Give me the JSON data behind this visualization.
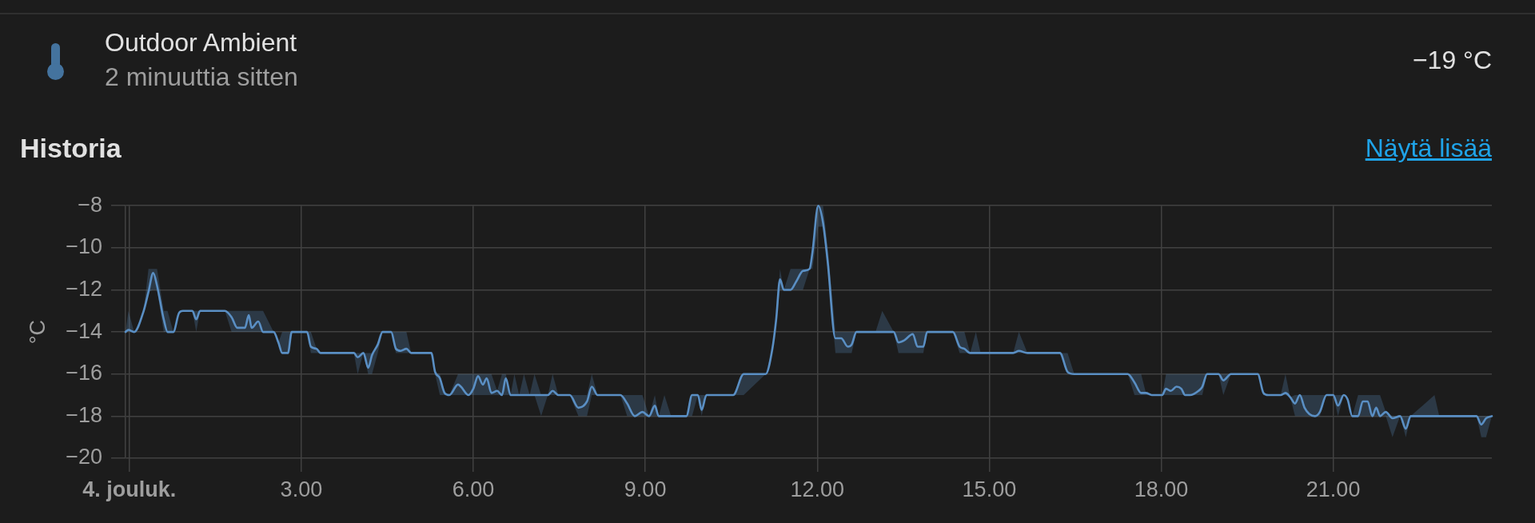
{
  "chart_data": {
    "type": "line",
    "title": "Outdoor Ambient",
    "subtitle": "2 minuuttia sitten",
    "annotations": [
      "−19 °C",
      "Historia",
      "Näytä lisää"
    ],
    "ylabel": "°C",
    "x": [
      "--12-03T23:56",
      "--12-03T23:59",
      "--12-04T00:05",
      "--12-04T00:15",
      "--12-04T00:20",
      "--12-04T00:25",
      "--12-04T00:29",
      "--12-04T00:36",
      "--12-04T00:40",
      "--12-04T00:46",
      "--12-04T00:52",
      "--12-04T00:56",
      "--12-04T01:06",
      "--12-04T01:10",
      "--12-04T01:14",
      "--12-04T01:40",
      "--12-04T01:47",
      "--12-04T01:53",
      "--12-04T02:01",
      "--12-04T02:05",
      "--12-04T02:08",
      "--12-04T02:15",
      "--12-04T02:20",
      "--12-04T02:31",
      "--12-04T02:36",
      "--12-04T02:40",
      "--12-04T02:46",
      "--12-04T02:50",
      "--12-04T03:06",
      "--12-04T03:10",
      "--12-04T03:16",
      "--12-04T03:20",
      "--12-04T03:55",
      "--12-04T03:59",
      "--12-04T04:05",
      "--12-04T04:10",
      "--12-04T04:14",
      "--12-04T04:20",
      "--12-04T04:25",
      "--12-04T04:34",
      "--12-04T04:39",
      "--12-04T04:44",
      "--12-04T04:50",
      "--12-04T04:55",
      "--12-04T05:16",
      "--12-04T05:20",
      "--12-04T05:25",
      "--12-04T05:30",
      "--12-04T05:35",
      "--12-04T05:44",
      "--12-04T05:47",
      "--12-04T05:55",
      "--12-04T06:00",
      "--12-04T06:05",
      "--12-04T06:10",
      "--12-04T06:14",
      "--12-04T06:19",
      "--12-04T06:25",
      "--12-04T06:30",
      "--12-04T06:34",
      "--12-04T06:39",
      "--12-04T06:43",
      "--12-04T06:48",
      "--12-04T06:53",
      "--12-04T06:59",
      "--12-04T07:04",
      "--12-04T07:11",
      "--12-04T07:18",
      "--12-04T07:23",
      "--12-04T07:29",
      "--12-04T07:41",
      "--12-04T07:50",
      "--12-04T07:59",
      "--12-04T08:04",
      "--12-04T08:10",
      "--12-04T08:34",
      "--12-04T08:41",
      "--12-04T08:49",
      "--12-04T08:57",
      "--12-04T09:04",
      "--12-04T09:10",
      "--12-04T09:14",
      "--12-04T09:20",
      "--12-04T09:27",
      "--12-04T09:43",
      "--12-04T09:49",
      "--12-04T09:55",
      "--12-04T09:59",
      "--12-04T10:04",
      "--12-04T10:32",
      "--12-04T10:43",
      "--12-04T11:06",
      "--12-04T11:13",
      "--12-04T11:17",
      "--12-04T11:21",
      "--12-04T11:25",
      "--12-04T11:32",
      "--12-04T11:38",
      "--12-04T11:45",
      "--12-04T11:52",
      "--12-04T11:55",
      "--12-04T12:01",
      "--12-04T12:06",
      "--12-04T12:11",
      "--12-04T12:19",
      "--12-04T12:25",
      "--12-04T12:32",
      "--12-04T12:36",
      "--12-04T12:41",
      "--12-04T13:01",
      "--12-04T13:08",
      "--12-04T13:20",
      "--12-04T13:25",
      "--12-04T13:31",
      "--12-04T13:40",
      "--12-04T13:45",
      "--12-04T13:51",
      "--12-04T13:55",
      "--12-04T14:22",
      "--12-04T14:29",
      "--12-04T14:34",
      "--12-04T14:40",
      "--12-04T14:46",
      "--12-04T14:51",
      "--12-04T15:25",
      "--12-04T15:31",
      "--12-04T15:40",
      "--12-04T16:14",
      "--12-04T16:22",
      "--12-04T16:29",
      "--12-04T17:25",
      "--12-04T17:32",
      "--12-04T17:39",
      "--12-04T17:44",
      "--12-04T17:50",
      "--12-04T18:01",
      "--12-04T18:05",
      "--12-04T18:10",
      "--12-04T18:16",
      "--12-04T18:21",
      "--12-04T18:25",
      "--12-04T18:30",
      "--12-04T18:39",
      "--12-04T18:43",
      "--12-04T18:48",
      "--12-04T19:00",
      "--12-04T19:05",
      "--12-04T19:13",
      "--12-04T19:41",
      "--12-04T19:47",
      "--12-04T19:52",
      "--12-04T20:05",
      "--12-04T20:10",
      "--12-04T20:15",
      "--12-04T20:20",
      "--12-04T20:25",
      "--12-04T20:30",
      "--12-04T20:35",
      "--12-04T20:41",
      "--12-04T20:46",
      "--12-04T20:53",
      "--12-04T21:00",
      "--12-04T21:05",
      "--12-04T21:11",
      "--12-04T21:15",
      "--12-04T21:20",
      "--12-04T21:26",
      "--12-04T21:31",
      "--12-04T21:36",
      "--12-04T21:41",
      "--12-04T21:45",
      "--12-04T21:49",
      "--12-04T21:55",
      "--12-04T22:02",
      "--12-04T22:10",
      "--12-04T22:16",
      "--12-04T22:21",
      "--12-04T22:46",
      "--12-04T22:51",
      "--12-04T23:30",
      "--12-04T23:35",
      "--12-04T23:40",
      "--12-04T23:46"
    ],
    "series": [
      {
        "color": "#5a8fc4",
        "values": [
          -14,
          -13.9,
          -14,
          -13,
          -12.1,
          -11.2,
          -11.8,
          -13.4,
          -14,
          -14,
          -13.1,
          -13,
          -13,
          -13.4,
          -13,
          -13,
          -13.3,
          -13.8,
          -13.8,
          -13.2,
          -13.8,
          -13.5,
          -14,
          -14,
          -14.5,
          -15,
          -15,
          -14,
          -14,
          -14.7,
          -14.8,
          -15,
          -15,
          -15.2,
          -15,
          -15.7,
          -15.1,
          -14.6,
          -14,
          -14,
          -14.8,
          -14.9,
          -14.8,
          -15,
          -15,
          -15.9,
          -16.2,
          -16.9,
          -17,
          -16.5,
          -16.6,
          -17,
          -16.7,
          -16.1,
          -16.5,
          -16.2,
          -16.9,
          -16.8,
          -17,
          -16.2,
          -17,
          -17,
          -17,
          -17,
          -17,
          -17,
          -17,
          -17,
          -16.8,
          -17,
          -17,
          -17.6,
          -17.3,
          -16.6,
          -17,
          -17,
          -17.4,
          -18,
          -17.8,
          -18,
          -17.5,
          -18,
          -18,
          -18,
          -18,
          -17,
          -17,
          -17.7,
          -17,
          -17,
          -16,
          -16,
          -14.8,
          -13.4,
          -11.5,
          -12,
          -12,
          -11.6,
          -11.1,
          -11,
          -10.2,
          -8,
          -8.8,
          -10.7,
          -14.3,
          -14.3,
          -14.7,
          -14.6,
          -14,
          -14,
          -14,
          -14,
          -14.5,
          -14.4,
          -14.1,
          -14.7,
          -14.7,
          -14,
          -14,
          -14.7,
          -14.8,
          -15,
          -15,
          -15,
          -15,
          -14.9,
          -15,
          -15,
          -15.9,
          -16,
          -16,
          -16.4,
          -16.9,
          -16.9,
          -17,
          -17,
          -16.7,
          -16.8,
          -16.6,
          -16.7,
          -17,
          -17,
          -16.8,
          -16.6,
          -16,
          -16,
          -16.3,
          -16,
          -16,
          -16.9,
          -17,
          -17,
          -16.9,
          -17.1,
          -17.4,
          -17,
          -17.6,
          -17.9,
          -18,
          -17.8,
          -17,
          -17,
          -17.5,
          -17,
          -17.2,
          -18,
          -18,
          -17.3,
          -17.3,
          -18,
          -17.6,
          -18,
          -17.8,
          -18.1,
          -18,
          -18.6,
          -18,
          -18,
          -18,
          -18,
          -18.4,
          -18.1,
          -18
        ],
        "lower": [
          -14,
          -14,
          -14,
          -13,
          -12.1,
          -12,
          -12,
          -14,
          -14,
          -14,
          -13.1,
          -13,
          -13,
          -14,
          -13,
          -13,
          -14,
          -14,
          -14,
          -14,
          -14,
          -14,
          -14,
          -14,
          -14.5,
          -15,
          -15,
          -14,
          -14,
          -15,
          -15,
          -15,
          -15,
          -16,
          -15,
          -16,
          -16,
          -15,
          -14,
          -14,
          -15,
          -15,
          -15,
          -15,
          -15,
          -16,
          -17,
          -17,
          -17,
          -17,
          -17,
          -17,
          -17,
          -17,
          -17,
          -17,
          -17,
          -17,
          -17,
          -17,
          -17,
          -17,
          -17,
          -17,
          -17,
          -17,
          -18,
          -17,
          -17,
          -17,
          -17,
          -18,
          -18,
          -17,
          -17,
          -17,
          -18,
          -18,
          -18,
          -18,
          -18,
          -18,
          -18,
          -18,
          -18,
          -18,
          -17,
          -18,
          -17,
          -17,
          -17,
          -16,
          -15,
          -13.4,
          -12,
          -12,
          -12,
          -12,
          -12,
          -11,
          -11,
          -9,
          -9,
          -11,
          -15,
          -15,
          -15,
          -15,
          -14,
          -14,
          -14,
          -14,
          -15,
          -15,
          -15,
          -15,
          -15,
          -14,
          -14,
          -15,
          -15,
          -15,
          -15,
          -15,
          -15,
          -15,
          -15,
          -15,
          -16,
          -16,
          -16,
          -17,
          -17,
          -17,
          -17,
          -17,
          -17,
          -17,
          -17,
          -17,
          -17,
          -17,
          -17,
          -17,
          -16,
          -16,
          -17,
          -16,
          -16,
          -17,
          -17,
          -17,
          -17,
          -17.1,
          -18,
          -18,
          -18,
          -18,
          -18,
          -18,
          -17,
          -17,
          -18,
          -17,
          -17.2,
          -18,
          -18,
          -18,
          -18,
          -18,
          -18,
          -18,
          -18,
          -19,
          -18,
          -19,
          -18,
          -18,
          -18,
          -18,
          -19,
          -19,
          -18
        ],
        "upper": [
          -14,
          -13,
          -14,
          -13,
          -11,
          -11,
          -11,
          -13,
          -13,
          -14,
          -13.1,
          -13,
          -13,
          -13,
          -13,
          -13,
          -13,
          -13,
          -13,
          -13,
          -13,
          -13,
          -13,
          -14,
          -14.5,
          -14,
          -14,
          -14,
          -14,
          -14,
          -14.8,
          -15,
          -15,
          -15,
          -15,
          -15,
          -15,
          -14.6,
          -14,
          -14,
          -14,
          -14,
          -14,
          -15,
          -15,
          -15.9,
          -16,
          -16.9,
          -17,
          -16,
          -16,
          -16,
          -16,
          -16,
          -16,
          -16,
          -16,
          -16.8,
          -16,
          -16,
          -17,
          -16,
          -17,
          -16,
          -17,
          -16,
          -17,
          -17,
          -16,
          -17,
          -17,
          -17,
          -17,
          -16,
          -17,
          -17,
          -17,
          -17,
          -17,
          -18,
          -17,
          -18,
          -17,
          -18,
          -18,
          -17,
          -17,
          -17,
          -17,
          -17,
          -16,
          -16,
          -14.8,
          -13.4,
          -11,
          -12,
          -11,
          -11,
          -11,
          -11,
          -10,
          -8,
          -8,
          -10,
          -14,
          -14,
          -14,
          -14,
          -14,
          -14,
          -13,
          -14,
          -14,
          -14,
          -14,
          -14,
          -14,
          -14,
          -14,
          -14,
          -14,
          -15,
          -14,
          -15,
          -15,
          -14,
          -15,
          -15,
          -15,
          -16,
          -16,
          -16,
          -16,
          -16.9,
          -17,
          -17,
          -16,
          -16,
          -16,
          -16,
          -16,
          -16,
          -16,
          -16,
          -16,
          -16,
          -16,
          -16,
          -16,
          -16.9,
          -17,
          -17,
          -16,
          -17.1,
          -17,
          -17,
          -17,
          -17,
          -17,
          -17,
          -17,
          -17,
          -17,
          -17,
          -17.2,
          -18,
          -17,
          -17,
          -17,
          -17,
          -17,
          -17,
          -17.8,
          -18,
          -18,
          -18,
          -18,
          -17,
          -18,
          -18,
          -18,
          -18,
          -18
        ]
      }
    ],
    "xlim": [
      "--12-03T23:56",
      "--12-04T23:46"
    ],
    "xticks": [
      {
        "value": "--12-04T00:00",
        "label": "4. jouluk."
      },
      {
        "value": "--12-04T03:00",
        "label": "3.00"
      },
      {
        "value": "--12-04T06:00",
        "label": "6.00"
      },
      {
        "value": "--12-04T09:00",
        "label": "9.00"
      },
      {
        "value": "--12-04T12:00",
        "label": "12.00"
      },
      {
        "value": "--12-04T15:00",
        "label": "15.00"
      },
      {
        "value": "--12-04T18:00",
        "label": "18.00"
      },
      {
        "value": "--12-04T21:00",
        "label": "21.00"
      }
    ],
    "ylim": [
      -20,
      -8
    ],
    "yticks": [
      {
        "value": -20,
        "label": "−20"
      },
      {
        "value": -18,
        "label": "−18"
      },
      {
        "value": -16,
        "label": "−16"
      },
      {
        "value": -14,
        "label": "−14"
      },
      {
        "value": -12,
        "label": "−12"
      },
      {
        "value": -10,
        "label": "−10"
      },
      {
        "value": -8,
        "label": "−8"
      }
    ],
    "grid": true
  }
}
